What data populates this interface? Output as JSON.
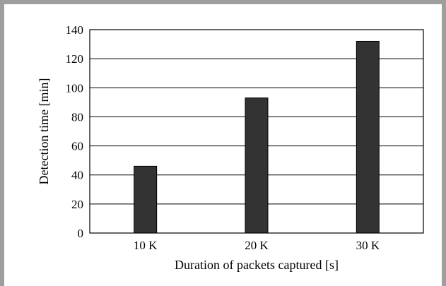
{
  "chart_data": {
    "type": "bar",
    "categories": [
      "10 K",
      "20 K",
      "30 K"
    ],
    "values": [
      46,
      93,
      132
    ],
    "title": "",
    "xlabel": "Duration of packets captured [s]",
    "ylabel": "Detection time [min]",
    "ylim": [
      0,
      140
    ],
    "yticks": [
      0,
      20,
      40,
      60,
      80,
      100,
      120,
      140
    ],
    "grid": true,
    "bar_color": "#333333"
  }
}
